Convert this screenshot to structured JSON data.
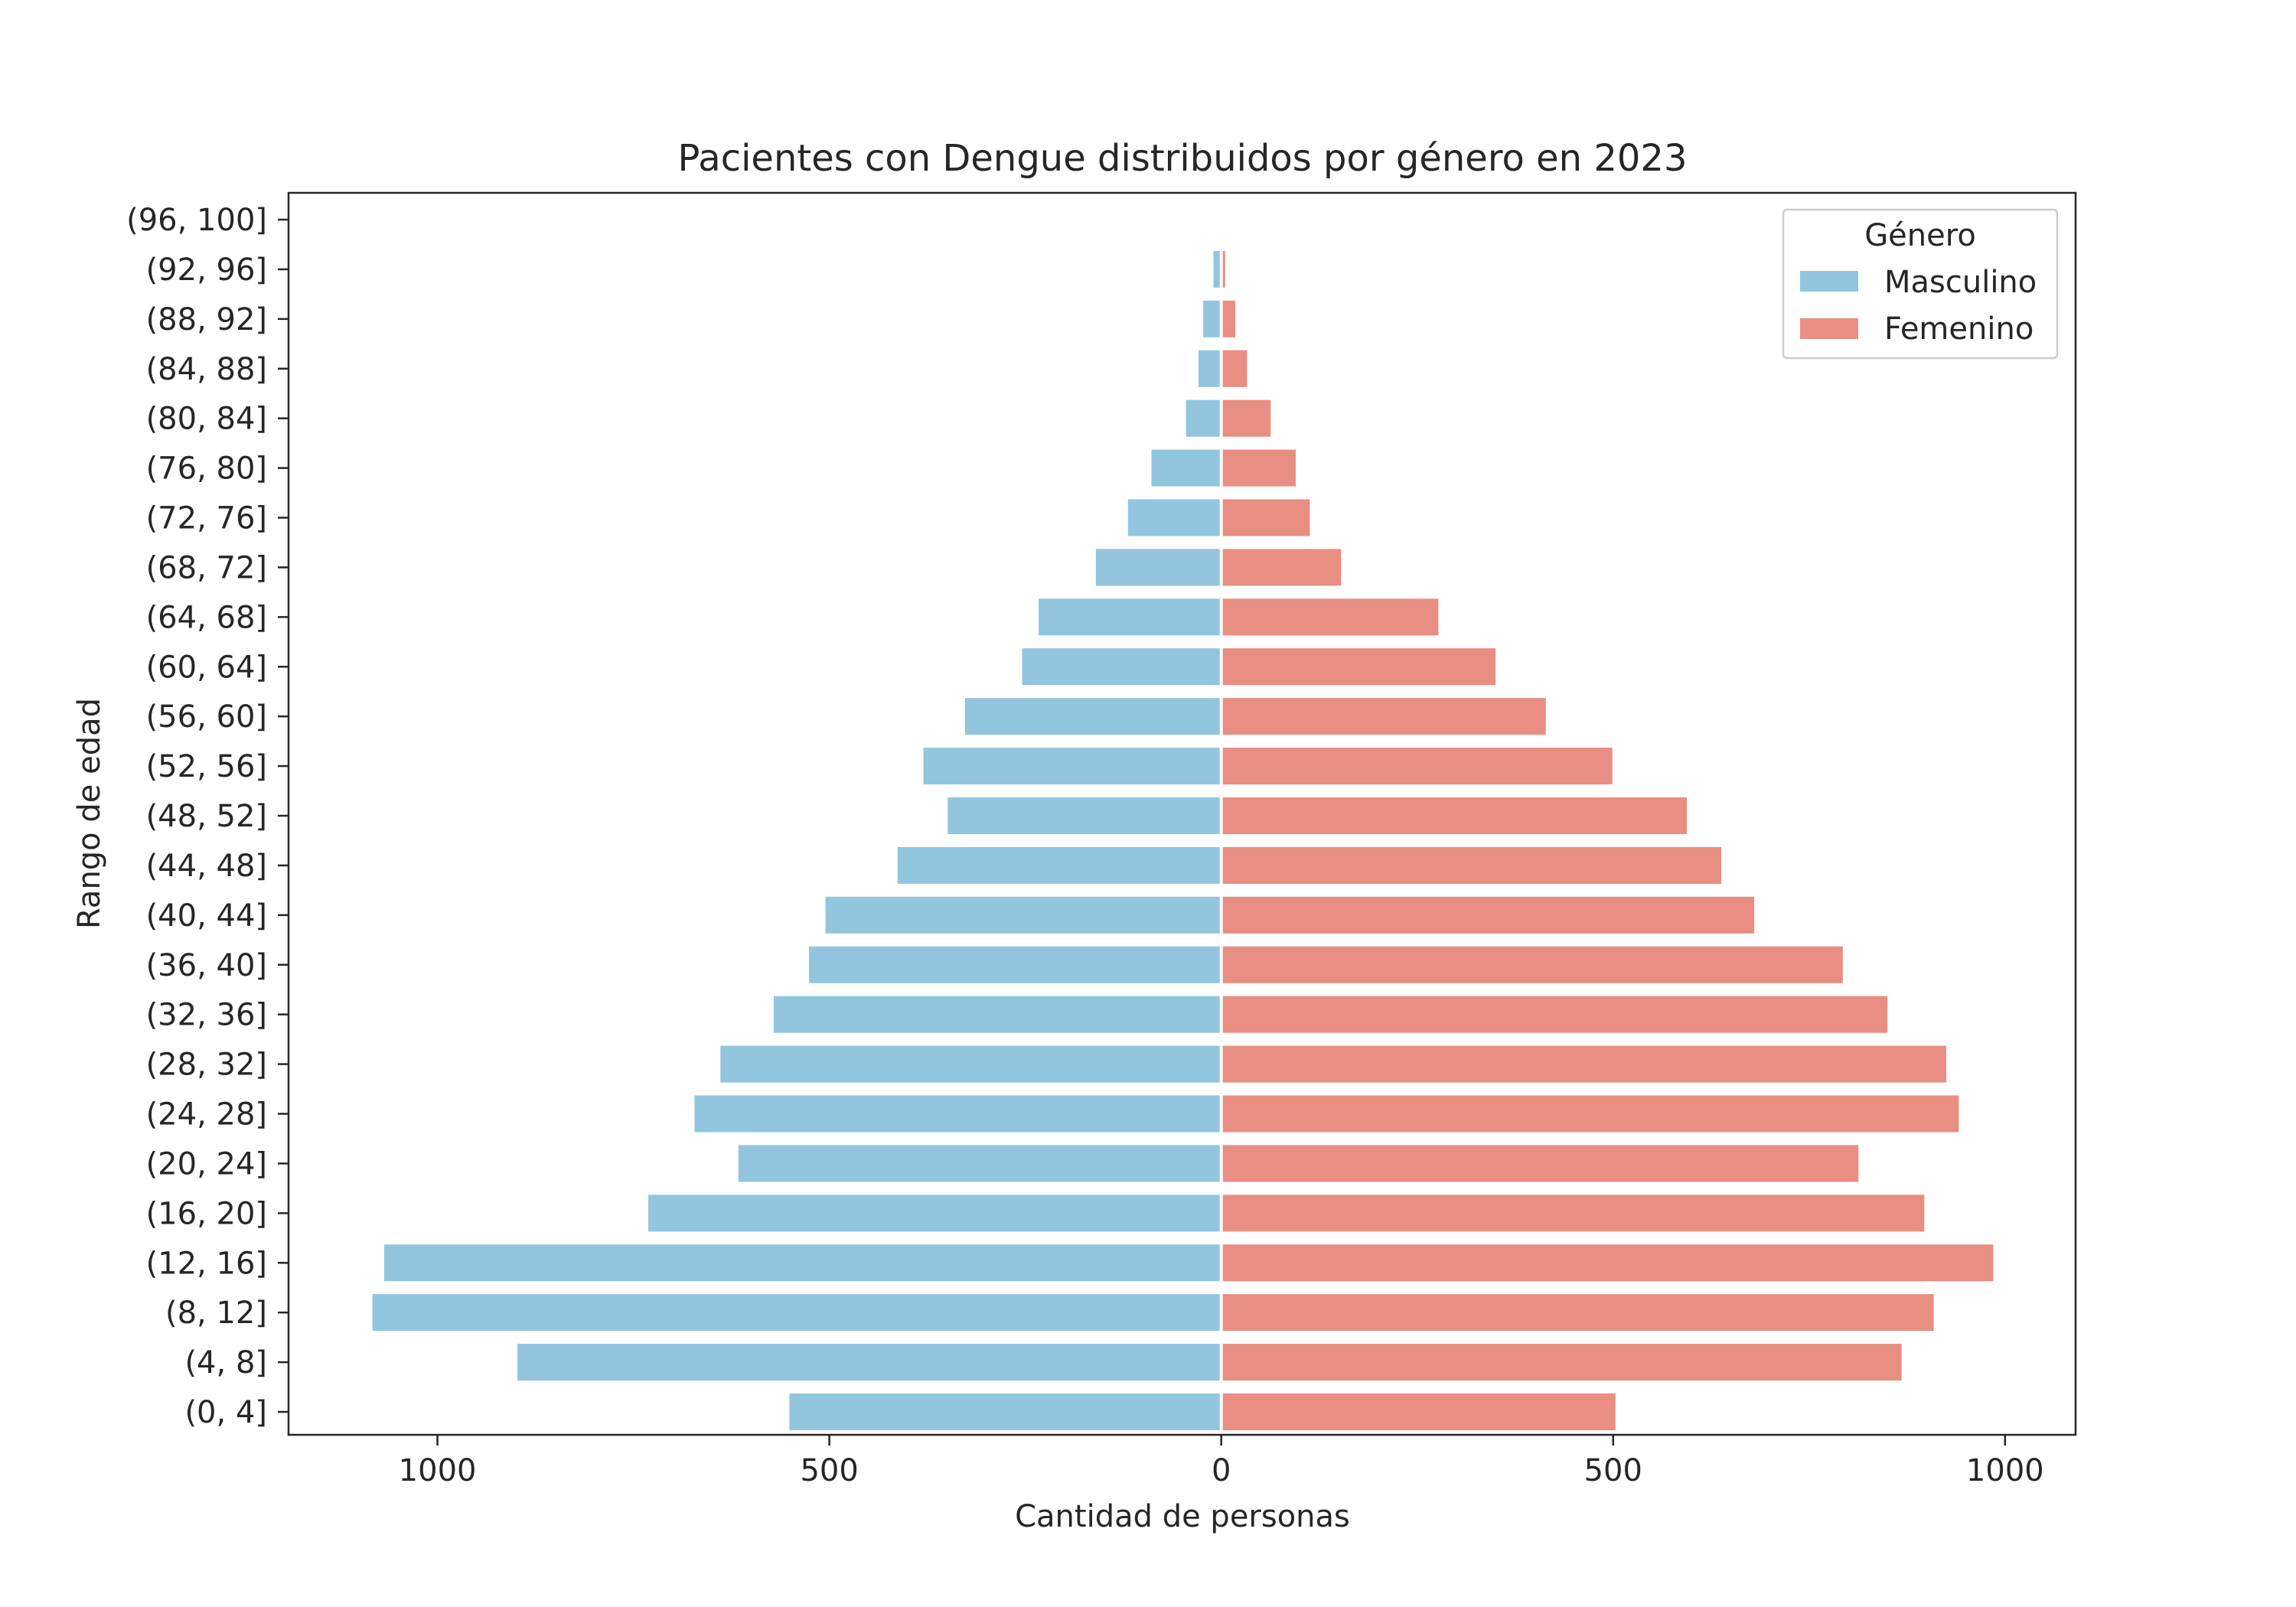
{
  "chart_data": {
    "type": "bar",
    "orientation": "horizontal",
    "title": "Pacientes con Dengue distribuidos por género en 2023",
    "xlabel": "Cantidad de personas",
    "ylabel": "Rango de edad",
    "xlim": [
      -1190,
      1090
    ],
    "x_ticks": [
      -1000,
      -500,
      0,
      500,
      1000
    ],
    "x_tick_labels": [
      "1000",
      "500",
      "0",
      "500",
      "1000"
    ],
    "categories": [
      "(0, 4]",
      "(4, 8]",
      "(8, 12]",
      "(12, 16]",
      "(16, 20]",
      "(20, 24]",
      "(24, 28]",
      "(28, 32]",
      "(32, 36]",
      "(36, 40]",
      "(40, 44]",
      "(44, 48]",
      "(48, 52]",
      "(52, 56]",
      "(56, 60]",
      "(60, 64]",
      "(64, 68]",
      "(68, 72]",
      "(72, 76]",
      "(76, 80]",
      "(80, 84]",
      "(84, 88]",
      "(88, 92]",
      "(92, 96]",
      "(96, 100]"
    ],
    "series": [
      {
        "name": "Masculino",
        "color": "#92c6de",
        "values": [
          -551,
          -898,
          -1083,
          -1068,
          -731,
          -616,
          -672,
          -639,
          -571,
          -526,
          -505,
          -413,
          -349,
          -380,
          -327,
          -254,
          -233,
          -160,
          -119,
          -89,
          -45,
          -29,
          -23,
          -10,
          0
        ]
      },
      {
        "name": "Femenino",
        "color": "#e88e82",
        "values": [
          503,
          868,
          909,
          985,
          897,
          813,
          941,
          925,
          850,
          793,
          680,
          638,
          594,
          499,
          414,
          350,
          277,
          153,
          113,
          95,
          63,
          33,
          18,
          5,
          0
        ]
      }
    ],
    "legend": {
      "title": "Género",
      "position": "top-right"
    },
    "grid": false
  }
}
